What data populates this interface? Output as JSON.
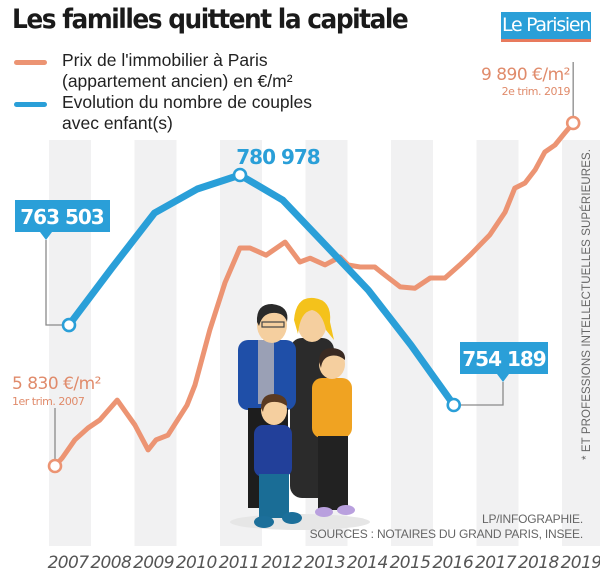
{
  "header": {
    "title": "Les familles quittent la capitale",
    "logo": "Le Parisien"
  },
  "legend": [
    {
      "label_line1": "Prix de l'immobilier à Paris",
      "label_line2": "(appartement ancien) en €/m²",
      "color": "#ec9473"
    },
    {
      "label_line1": "Evolution du nombre de couples",
      "label_line2": "avec enfant(s)",
      "color": "#2a9fd8"
    }
  ],
  "annotations": {
    "price_start_value": "5 830 €/m²",
    "price_start_period": "1er trim. 2007",
    "price_end_value": "9 890 €/m²",
    "price_end_period": "2e trim. 2019",
    "couples_2007": "763 503",
    "couples_2011": "780 978",
    "couples_2016": "754 189",
    "vertical_note": "* ET PROFESSIONS INTELLECTUELLES SUPÉRIEURES.",
    "credit": "LP/INFOGRAPHIE.",
    "sources": "SOURCES : NOTAIRES DU GRAND PARIS, INSEE."
  },
  "chart_data": {
    "type": "line",
    "title": "Les familles quittent la capitale",
    "xlabel": "",
    "ylabel": "",
    "categories": [
      "2007",
      "2008",
      "2009",
      "2010",
      "2011",
      "2012",
      "2013",
      "2014",
      "2015",
      "2016",
      "2017",
      "2018",
      "2019"
    ],
    "grid": "alternating vertical bands",
    "legend_position": "top-left",
    "series": [
      {
        "name": "Prix de l'immobilier à Paris (appartement ancien) en €/m²",
        "color": "#ec9473",
        "unit": "€/m²",
        "points": [
          {
            "t": 2007.0,
            "v": 5830
          },
          {
            "t": 2007.17,
            "v": 5925
          },
          {
            "t": 2007.47,
            "v": 6140
          },
          {
            "t": 2007.78,
            "v": 6280
          },
          {
            "t": 2008.06,
            "v": 6375
          },
          {
            "t": 2008.47,
            "v": 6610
          },
          {
            "t": 2008.89,
            "v": 6315
          },
          {
            "t": 2009.2,
            "v": 6020
          },
          {
            "t": 2009.39,
            "v": 6140
          },
          {
            "t": 2009.67,
            "v": 6195
          },
          {
            "t": 2010.12,
            "v": 6550
          },
          {
            "t": 2010.31,
            "v": 6790
          },
          {
            "t": 2010.66,
            "v": 7440
          },
          {
            "t": 2011.02,
            "v": 8000
          },
          {
            "t": 2011.37,
            "v": 8410
          },
          {
            "t": 2011.61,
            "v": 8410
          },
          {
            "t": 2011.99,
            "v": 8325
          },
          {
            "t": 2012.44,
            "v": 8480
          },
          {
            "t": 2012.79,
            "v": 8245
          },
          {
            "t": 2013.03,
            "v": 8290
          },
          {
            "t": 2013.38,
            "v": 8210
          },
          {
            "t": 2013.74,
            "v": 8305
          },
          {
            "t": 2013.93,
            "v": 8210
          },
          {
            "t": 2014.21,
            "v": 8185
          },
          {
            "t": 2014.56,
            "v": 8185
          },
          {
            "t": 2014.8,
            "v": 8090
          },
          {
            "t": 2015.16,
            "v": 7950
          },
          {
            "t": 2015.51,
            "v": 7935
          },
          {
            "t": 2015.87,
            "v": 8055
          },
          {
            "t": 2016.22,
            "v": 8055
          },
          {
            "t": 2016.57,
            "v": 8210
          },
          {
            "t": 2016.81,
            "v": 8325
          },
          {
            "t": 2017.28,
            "v": 8565
          },
          {
            "t": 2017.64,
            "v": 8835
          },
          {
            "t": 2017.87,
            "v": 9120
          },
          {
            "t": 2018.11,
            "v": 9180
          },
          {
            "t": 2018.35,
            "v": 9335
          },
          {
            "t": 2018.58,
            "v": 9545
          },
          {
            "t": 2018.82,
            "v": 9630
          },
          {
            "t": 2019.05,
            "v": 9770
          },
          {
            "t": 2019.25,
            "v": 9890
          }
        ],
        "range": [
          5830,
          9890
        ]
      },
      {
        "name": "Evolution du nombre de couples avec enfant(s)",
        "color": "#2a9fd8",
        "unit": "couples",
        "points": [
          {
            "t": 2007,
            "v": 763503
          },
          {
            "t": 2008,
            "v": 770140
          },
          {
            "t": 2009,
            "v": 776550
          },
          {
            "t": 2010,
            "v": 779350
          },
          {
            "t": 2011,
            "v": 780978
          },
          {
            "t": 2012,
            "v": 778060
          },
          {
            "t": 2013,
            "v": 772820
          },
          {
            "t": 2014,
            "v": 767575
          },
          {
            "t": 2015,
            "v": 761165
          },
          {
            "t": 2016,
            "v": 754189
          }
        ],
        "range": [
          754189,
          780978
        ]
      }
    ]
  }
}
